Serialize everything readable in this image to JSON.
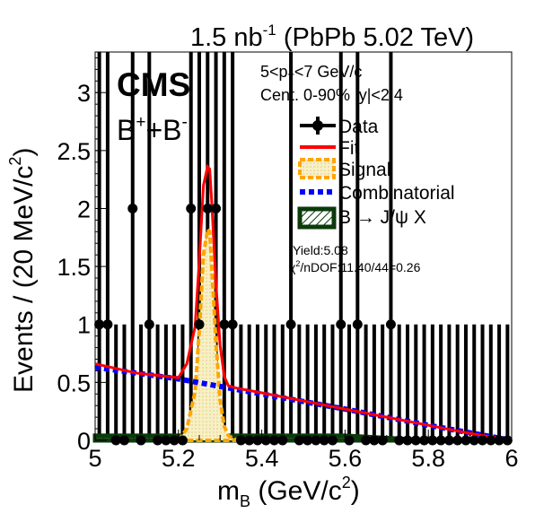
{
  "chart_data": {
    "type": "scatter",
    "title": "1.5 nb⁻¹ (PbPb 5.02 TeV)",
    "title_parts": {
      "lumi": "1.5 nb",
      "exp": "-1",
      "rest": " (PbPb 5.02 TeV)"
    },
    "experiment": "CMS",
    "channel": {
      "base": "B",
      "sup1": "+",
      "plus": "+B",
      "sup2": "-"
    },
    "kinematics": {
      "pt_line": {
        "pre": "5<p",
        "sub": "T",
        "post": "<7 GeV/c"
      },
      "cent_line": "Cent. 0-90%  |y|<2.4"
    },
    "xlabel": {
      "base": "m",
      "sub": "B",
      "post": " (GeV/c",
      "sup": "2",
      "close": ")"
    },
    "ylabel": {
      "pre": "Events / (20 MeV/c",
      "sup": "2",
      "close": ")"
    },
    "xlim": [
      5.0,
      6.0
    ],
    "ylim": [
      0,
      3.35
    ],
    "xticks": [
      "5",
      "5.2",
      "5.4",
      "5.6",
      "5.8",
      "6"
    ],
    "xtick_values": [
      5.0,
      5.2,
      5.4,
      5.6,
      5.8,
      6.0
    ],
    "yticks": [
      "0",
      "0.5",
      "1",
      "1.5",
      "2",
      "2.5",
      "3"
    ],
    "ytick_values": [
      0,
      0.5,
      1,
      1.5,
      2,
      2.5,
      3
    ],
    "legend": {
      "placement": "top-right",
      "entries": [
        {
          "label": "Data",
          "style": "marker",
          "color": "#000000"
        },
        {
          "label": "Fit",
          "style": "line",
          "color": "#ff0000"
        },
        {
          "label": "Signal",
          "style": "dashed-fill",
          "color": "#ffa500"
        },
        {
          "label": "Combinatorial",
          "style": "dashed-line",
          "color": "#0000ff"
        },
        {
          "label": "B → J/ψ X",
          "style": "hatched-fill",
          "color": "#0b3a0b"
        }
      ]
    },
    "annotations": {
      "yield": "Yield:5.08",
      "chi2": {
        "sym": "χ",
        "sup": "2",
        "rest": "/nDOF:11.40/44=0.26"
      }
    },
    "colors": {
      "data": "#000000",
      "fit": "#ff0000",
      "signal_line": "#ffa500",
      "signal_fill": "#f7f0c6",
      "combinatorial": "#0000ff",
      "peaking_bkg": "#0b3a0b",
      "error_bar_band": "#000000"
    },
    "series": [
      {
        "name": "Data",
        "style": "points",
        "x": [
          5.01,
          5.03,
          5.05,
          5.07,
          5.09,
          5.11,
          5.13,
          5.15,
          5.17,
          5.19,
          5.21,
          5.23,
          5.25,
          5.27,
          5.29,
          5.31,
          5.33,
          5.35,
          5.37,
          5.39,
          5.41,
          5.43,
          5.45,
          5.47,
          5.49,
          5.51,
          5.53,
          5.55,
          5.57,
          5.59,
          5.61,
          5.63,
          5.65,
          5.67,
          5.69,
          5.71,
          5.73,
          5.75,
          5.77,
          5.79,
          5.81,
          5.83,
          5.85,
          5.87,
          5.89,
          5.91,
          5.93,
          5.95,
          5.97,
          5.99
        ],
        "y": [
          1,
          1,
          0,
          0,
          2,
          0,
          1,
          0,
          0,
          0,
          0,
          2,
          1,
          2,
          2,
          1,
          1,
          0,
          0,
          0,
          0,
          0,
          0,
          1,
          0,
          0,
          0,
          0,
          0,
          1,
          0,
          1,
          0,
          0,
          0,
          1,
          0,
          0,
          0,
          0,
          0,
          0,
          0,
          0,
          0,
          0,
          0,
          0,
          0,
          0
        ]
      },
      {
        "name": "Fit",
        "style": "line",
        "x": [
          5.0,
          5.1,
          5.15,
          5.2,
          5.22,
          5.24,
          5.25,
          5.26,
          5.27,
          5.275,
          5.28,
          5.29,
          5.3,
          5.31,
          5.32,
          5.34,
          5.4,
          5.5,
          5.6,
          5.7,
          5.8,
          5.9,
          6.0
        ],
        "y": [
          0.66,
          0.58,
          0.56,
          0.54,
          0.66,
          0.98,
          1.55,
          2.2,
          2.36,
          2.34,
          2.05,
          1.35,
          0.82,
          0.55,
          0.47,
          0.45,
          0.41,
          0.34,
          0.27,
          0.2,
          0.13,
          0.06,
          0.0
        ]
      },
      {
        "name": "Combinatorial",
        "style": "dashed-line",
        "x": [
          5.0,
          5.2,
          5.4,
          5.6,
          5.8,
          6.0
        ],
        "y": [
          0.63,
          0.53,
          0.4,
          0.27,
          0.13,
          0.0
        ]
      },
      {
        "name": "Signal",
        "style": "dashed-fill",
        "x": [
          5.2,
          5.22,
          5.24,
          5.25,
          5.26,
          5.27,
          5.275,
          5.28,
          5.29,
          5.3,
          5.31,
          5.32,
          5.34,
          5.36
        ],
        "y": [
          0.0,
          0.1,
          0.42,
          0.95,
          1.6,
          1.82,
          1.8,
          1.5,
          0.85,
          0.35,
          0.12,
          0.04,
          0.0,
          0.0
        ]
      },
      {
        "name": "B → J/ψ X",
        "style": "hatched-fill",
        "x": [
          5.0,
          5.2,
          5.4,
          5.6,
          5.8,
          6.0
        ],
        "y": [
          0.04,
          0.04,
          0.04,
          0.04,
          0.0,
          0.0
        ]
      }
    ]
  }
}
